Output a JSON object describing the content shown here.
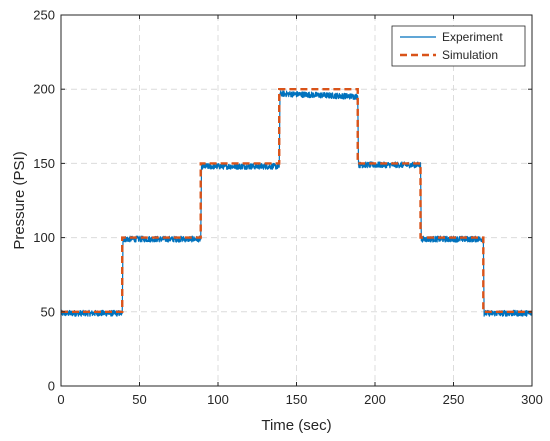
{
  "chart_data": {
    "type": "line",
    "title": "",
    "xlabel": "Time (sec)",
    "ylabel": "Pressure (PSI)",
    "xlim": [
      0,
      300
    ],
    "ylim": [
      0,
      250
    ],
    "xticks": [
      0,
      50,
      100,
      150,
      200,
      250,
      300
    ],
    "yticks": [
      0,
      50,
      100,
      150,
      200,
      250
    ],
    "grid": true,
    "legend_position": "top-right",
    "series": [
      {
        "name": "Experiment",
        "color": "#0072BD",
        "style": "solid-noisy",
        "noise_amplitude_psi": 2,
        "x": [
          0,
          39,
          39.5,
          89,
          89.5,
          139,
          139.5,
          189,
          189.5,
          229,
          229.5,
          269,
          269.5,
          300
        ],
        "y": [
          49,
          49,
          99,
          99,
          148,
          148,
          197,
          195,
          149,
          149,
          99,
          99,
          49,
          49
        ]
      },
      {
        "name": "Simulation",
        "color": "#D95319",
        "style": "dashed",
        "x": [
          0,
          39,
          39,
          89,
          89,
          139,
          139,
          189,
          189,
          229,
          229,
          269,
          269,
          300
        ],
        "y": [
          50,
          50,
          100,
          100,
          150,
          150,
          200,
          200,
          150,
          150,
          100,
          100,
          50,
          50
        ]
      }
    ]
  }
}
